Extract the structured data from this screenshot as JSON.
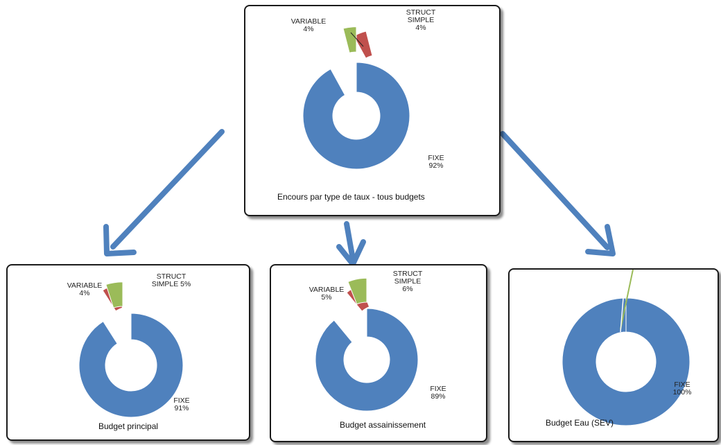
{
  "colors": {
    "fixe": "#4f81bd",
    "variable": "#c0504d",
    "struct": "#9bbb59",
    "arrow": "#4f81bd"
  },
  "chart_data": [
    {
      "type": "pie",
      "donut": true,
      "title": "Encours par type de taux - tous budgets",
      "slices": [
        {
          "name": "FIXE",
          "value": 92,
          "label": [
            "FIXE",
            "92%"
          ]
        },
        {
          "name": "VARIABLE",
          "value": 4,
          "label": [
            "VARIABLE",
            "4%"
          ]
        },
        {
          "name": "STRUCT SIMPLE",
          "value": 4,
          "label": [
            "STRUCT",
            "SIMPLE",
            "4%"
          ]
        }
      ]
    },
    {
      "type": "pie",
      "donut": true,
      "title": "Budget principal",
      "slices": [
        {
          "name": "FIXE",
          "value": 91,
          "label": [
            "FIXE",
            "91%"
          ]
        },
        {
          "name": "VARIABLE",
          "value": 4,
          "label": [
            "VARIABLE",
            "4%"
          ]
        },
        {
          "name": "STRUCT SIMPLE",
          "value": 5,
          "label": [
            "STRUCT",
            "SIMPLE 5%"
          ]
        }
      ]
    },
    {
      "type": "pie",
      "donut": true,
      "title": "Budget assainissement",
      "slices": [
        {
          "name": "FIXE",
          "value": 89,
          "label": [
            "FIXE",
            "89%"
          ]
        },
        {
          "name": "VARIABLE",
          "value": 5,
          "label": [
            "VARIABLE",
            "5%"
          ]
        },
        {
          "name": "STRUCT SIMPLE",
          "value": 6,
          "label": [
            "STRUCT",
            "SIMPLE",
            "6%"
          ]
        }
      ]
    },
    {
      "type": "pie",
      "donut": true,
      "title": "Budget Eau (SEV)",
      "slices": [
        {
          "name": "FIXE",
          "value": 100,
          "label": [
            "FIXE",
            "100%"
          ]
        }
      ]
    }
  ]
}
